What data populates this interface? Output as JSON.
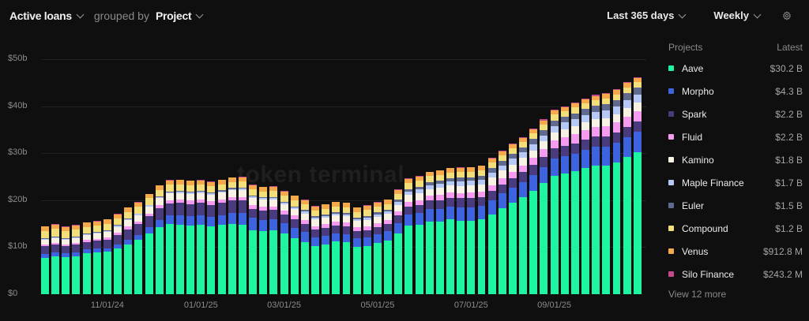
{
  "header": {
    "metric_label": "Active loans",
    "grouped_by_label": "grouped by",
    "group_label": "Project",
    "range_label": "Last 365 days",
    "interval_label": "Weekly",
    "settings_icon": "gear-icon"
  },
  "watermark": "token terminal",
  "legend": {
    "header_left": "Projects",
    "header_right": "Latest",
    "items": [
      {
        "name": "Aave",
        "value": "$30.2 B",
        "color": "#1ef5a0"
      },
      {
        "name": "Morpho",
        "value": "$4.3 B",
        "color": "#3d63e0"
      },
      {
        "name": "Spark",
        "value": "$2.2 B",
        "color": "#4a3a7e"
      },
      {
        "name": "Fluid",
        "value": "$2.2 B",
        "color": "#f59cf0"
      },
      {
        "name": "Kamino",
        "value": "$1.8 B",
        "color": "#f7f2e4"
      },
      {
        "name": "Maple Finance",
        "value": "$1.7 B",
        "color": "#b6c8f5"
      },
      {
        "name": "Euler",
        "value": "$1.5 B",
        "color": "#5f6a8e"
      },
      {
        "name": "Compound",
        "value": "$1.2 B",
        "color": "#f3df7a"
      },
      {
        "name": "Venus",
        "value": "$912.8 M",
        "color": "#f6a94a"
      },
      {
        "name": "Silo Finance",
        "value": "$243.2 M",
        "color": "#c4488c"
      }
    ],
    "view_more": "View 12 more"
  },
  "chart_data": {
    "type": "bar",
    "stacked": true,
    "title": "Active loans grouped by Project",
    "xlabel": "",
    "ylabel": "",
    "ylim": [
      0,
      50
    ],
    "y_ticks": [
      "$0",
      "$10b",
      "$20b",
      "$30b",
      "$40b",
      "$50b"
    ],
    "x_ticks": [
      {
        "label": "11/01/24",
        "index": 6
      },
      {
        "label": "01/01/25",
        "index": 15
      },
      {
        "label": "03/01/25",
        "index": 23
      },
      {
        "label": "05/01/25",
        "index": 32
      },
      {
        "label": "07/01/25",
        "index": 41
      },
      {
        "label": "09/01/25",
        "index": 49
      }
    ],
    "grid": true,
    "legend_position": "right",
    "series_order": [
      "Aave",
      "Morpho",
      "Spark",
      "Fluid",
      "Kamino",
      "Maple Finance",
      "Euler",
      "Compound",
      "Venus",
      "Silo Finance"
    ],
    "aave": [
      7.8,
      8.1,
      7.9,
      8.1,
      8.7,
      8.9,
      9.0,
      9.7,
      10.6,
      11.5,
      12.9,
      14.3,
      14.9,
      14.8,
      14.6,
      14.7,
      14.4,
      14.8,
      15.0,
      14.7,
      13.6,
      13.4,
      13.6,
      12.9,
      11.9,
      11.1,
      10.2,
      10.6,
      11.2,
      11.0,
      10.1,
      10.3,
      10.9,
      11.4,
      12.9,
      14.6,
      14.7,
      15.4,
      15.5,
      15.9,
      15.6,
      15.6,
      15.9,
      17.0,
      18.3,
      19.5,
      20.6,
      22.0,
      23.6,
      25.2,
      25.7,
      26.1,
      26.8,
      27.3,
      27.4,
      28.1,
      29.2,
      30.2
    ],
    "morpho": [
      0.8,
      0.8,
      0.8,
      0.8,
      0.8,
      0.8,
      0.8,
      0.9,
      1.0,
      1.1,
      1.3,
      1.5,
      1.8,
      2.0,
      2.0,
      2.0,
      2.0,
      2.0,
      2.3,
      2.6,
      2.6,
      2.4,
      2.3,
      2.2,
      2.2,
      2.1,
      1.9,
      1.9,
      1.8,
      1.8,
      1.8,
      1.8,
      1.9,
      2.0,
      2.2,
      2.4,
      2.6,
      2.7,
      2.7,
      2.8,
      2.9,
      2.9,
      2.9,
      3.0,
      3.1,
      3.2,
      3.3,
      3.4,
      3.5,
      3.6,
      3.7,
      3.8,
      3.9,
      4.0,
      4.0,
      4.1,
      4.2,
      4.3
    ],
    "spark": [
      1.6,
      1.6,
      1.5,
      1.6,
      1.6,
      1.7,
      1.8,
      2.0,
      2.2,
      2.3,
      2.4,
      2.5,
      2.6,
      2.6,
      2.6,
      2.7,
      2.6,
      2.6,
      2.6,
      2.6,
      2.0,
      2.0,
      2.0,
      1.9,
      1.9,
      1.8,
      1.6,
      1.6,
      1.6,
      1.6,
      1.5,
      1.5,
      1.5,
      1.5,
      1.6,
      1.6,
      1.7,
      1.8,
      1.8,
      1.8,
      1.9,
      1.9,
      1.9,
      2.0,
      2.0,
      2.0,
      2.1,
      2.1,
      2.1,
      2.2,
      2.2,
      2.2,
      2.2,
      2.2,
      2.2,
      2.2,
      2.2,
      2.2
    ],
    "fluid": [
      0.4,
      0.4,
      0.4,
      0.4,
      0.4,
      0.4,
      0.5,
      0.5,
      0.6,
      0.6,
      0.6,
      0.7,
      0.7,
      0.7,
      0.7,
      0.7,
      0.8,
      0.8,
      0.8,
      0.8,
      0.8,
      0.8,
      0.8,
      0.8,
      0.8,
      0.8,
      0.8,
      0.8,
      0.8,
      0.8,
      0.8,
      0.8,
      0.8,
      0.8,
      0.9,
      1.0,
      1.0,
      1.0,
      1.1,
      1.1,
      1.1,
      1.2,
      1.2,
      1.2,
      1.3,
      1.3,
      1.4,
      1.5,
      1.6,
      1.7,
      1.8,
      1.9,
      2.0,
      2.0,
      2.1,
      2.1,
      2.2,
      2.2
    ],
    "kamino": [
      1.0,
      1.0,
      1.0,
      1.0,
      1.1,
      1.1,
      1.1,
      1.2,
      1.3,
      1.3,
      1.4,
      1.4,
      1.4,
      1.4,
      1.4,
      1.4,
      1.4,
      1.4,
      1.4,
      1.5,
      1.5,
      1.5,
      1.5,
      1.4,
      1.4,
      1.4,
      1.4,
      1.4,
      1.4,
      1.4,
      1.4,
      1.4,
      1.4,
      1.4,
      1.4,
      1.5,
      1.5,
      1.5,
      1.5,
      1.5,
      1.5,
      1.5,
      1.5,
      1.6,
      1.6,
      1.6,
      1.6,
      1.6,
      1.7,
      1.7,
      1.7,
      1.7,
      1.7,
      1.8,
      1.8,
      1.8,
      1.8,
      1.8
    ],
    "maple": [
      0.2,
      0.2,
      0.2,
      0.2,
      0.2,
      0.2,
      0.3,
      0.3,
      0.3,
      0.3,
      0.3,
      0.3,
      0.3,
      0.3,
      0.3,
      0.3,
      0.3,
      0.3,
      0.3,
      0.3,
      0.3,
      0.3,
      0.3,
      0.3,
      0.3,
      0.4,
      0.4,
      0.4,
      0.4,
      0.4,
      0.4,
      0.5,
      0.5,
      0.5,
      0.6,
      0.7,
      0.8,
      0.8,
      0.9,
      0.9,
      1.0,
      1.0,
      1.0,
      1.1,
      1.1,
      1.2,
      1.2,
      1.3,
      1.3,
      1.4,
      1.4,
      1.5,
      1.5,
      1.5,
      1.6,
      1.6,
      1.7,
      1.7
    ],
    "euler": [
      0.1,
      0.1,
      0.1,
      0.1,
      0.1,
      0.1,
      0.1,
      0.1,
      0.1,
      0.1,
      0.1,
      0.1,
      0.2,
      0.2,
      0.2,
      0.2,
      0.2,
      0.2,
      0.2,
      0.2,
      0.2,
      0.2,
      0.2,
      0.2,
      0.2,
      0.3,
      0.3,
      0.3,
      0.3,
      0.3,
      0.3,
      0.4,
      0.4,
      0.4,
      0.5,
      0.6,
      0.6,
      0.7,
      0.7,
      0.7,
      0.8,
      0.8,
      0.8,
      0.9,
      0.9,
      1.0,
      1.0,
      1.1,
      1.1,
      1.2,
      1.2,
      1.3,
      1.3,
      1.3,
      1.4,
      1.4,
      1.5,
      1.5
    ],
    "compound": [
      1.6,
      1.7,
      1.5,
      1.5,
      1.4,
      1.4,
      1.4,
      1.4,
      1.4,
      1.4,
      1.4,
      1.4,
      1.4,
      1.4,
      1.4,
      1.3,
      1.3,
      1.3,
      1.3,
      1.3,
      1.3,
      1.3,
      1.3,
      1.3,
      1.3,
      1.2,
      1.2,
      1.2,
      1.2,
      1.2,
      1.2,
      1.2,
      1.2,
      1.2,
      1.2,
      1.2,
      1.2,
      1.2,
      1.2,
      1.2,
      1.2,
      1.2,
      1.2,
      1.2,
      1.2,
      1.2,
      1.2,
      1.2,
      1.2,
      1.2,
      1.2,
      1.2,
      1.2,
      1.2,
      1.2,
      1.2,
      1.2,
      1.2
    ],
    "venus": [
      0.9,
      0.9,
      0.9,
      0.9,
      0.9,
      0.9,
      0.9,
      0.9,
      0.9,
      0.9,
      0.9,
      0.9,
      0.9,
      0.9,
      0.9,
      0.9,
      0.9,
      0.9,
      0.9,
      0.9,
      0.9,
      0.9,
      0.9,
      0.9,
      0.9,
      0.9,
      0.9,
      0.9,
      0.9,
      0.9,
      0.9,
      0.9,
      0.9,
      0.9,
      0.9,
      0.9,
      0.9,
      0.9,
      0.9,
      0.9,
      0.9,
      0.9,
      0.9,
      0.9,
      0.9,
      0.9,
      0.9,
      0.9,
      0.9,
      0.9,
      0.9,
      0.9,
      0.9,
      0.9,
      0.9,
      0.9,
      0.9,
      0.9
    ],
    "silo": [
      0.1,
      0.1,
      0.1,
      0.1,
      0.1,
      0.1,
      0.1,
      0.1,
      0.1,
      0.1,
      0.1,
      0.1,
      0.1,
      0.1,
      0.1,
      0.1,
      0.1,
      0.1,
      0.1,
      0.1,
      0.1,
      0.1,
      0.1,
      0.1,
      0.1,
      0.1,
      0.1,
      0.1,
      0.1,
      0.1,
      0.1,
      0.1,
      0.1,
      0.1,
      0.1,
      0.1,
      0.1,
      0.1,
      0.1,
      0.1,
      0.1,
      0.1,
      0.1,
      0.1,
      0.1,
      0.1,
      0.1,
      0.2,
      0.2,
      0.2,
      0.2,
      0.2,
      0.2,
      0.2,
      0.2,
      0.2,
      0.2,
      0.2
    ]
  }
}
